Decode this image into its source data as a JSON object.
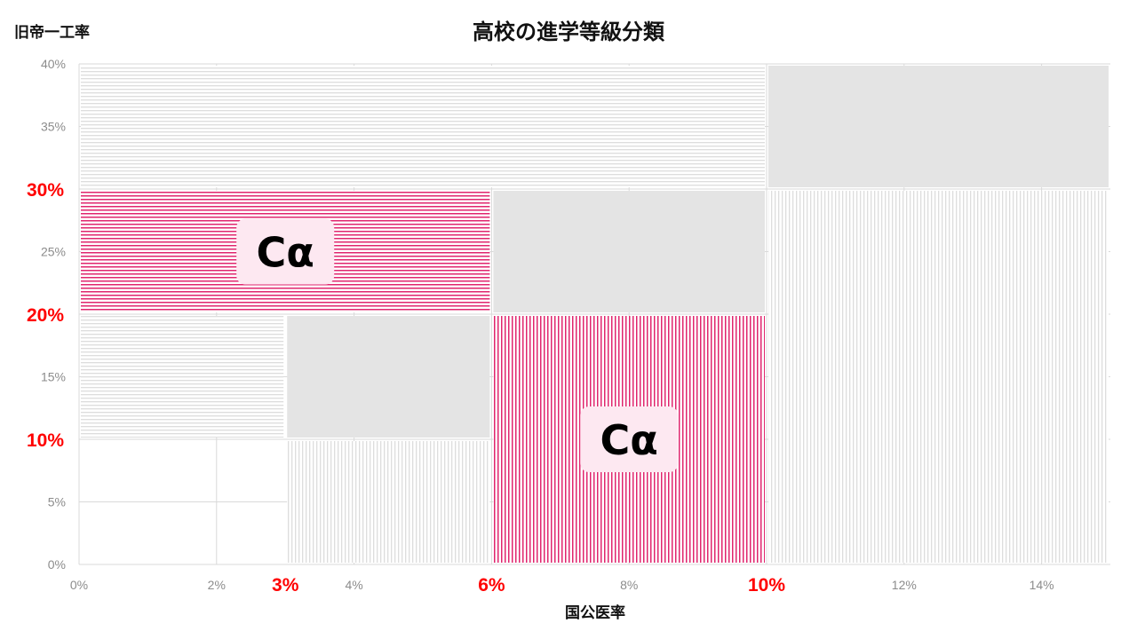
{
  "chart_data": {
    "type": "mosaic",
    "title": "高校の進学等級分類",
    "xlabel": "国公医率",
    "ylabel": "旧帝一工率",
    "xlim": [
      0,
      15
    ],
    "ylim": [
      0,
      40
    ],
    "grid": true,
    "x_ticks": [
      "0%",
      "2%",
      "4%",
      "8%",
      "12%",
      "14%"
    ],
    "x_tick_values": [
      0,
      2,
      4,
      8,
      12,
      14
    ],
    "x_highlight_ticks": [
      "3%",
      "6%",
      "10%"
    ],
    "x_highlight_values": [
      3,
      6,
      10
    ],
    "y_ticks": [
      "0%",
      "5%",
      "15%",
      "25%",
      "35%",
      "40%"
    ],
    "y_tick_values": [
      0,
      5,
      15,
      25,
      35,
      40
    ],
    "y_highlight_ticks": [
      "10%",
      "20%",
      "30%"
    ],
    "y_highlight_values": [
      10,
      20,
      30
    ],
    "highlight_color": "#ff0000",
    "regions": [
      {
        "x": [
          0,
          10
        ],
        "y": [
          30,
          40
        ],
        "fill": "hlines-gray",
        "label": ""
      },
      {
        "x": [
          10,
          15
        ],
        "y": [
          30,
          40
        ],
        "fill": "solid-gray",
        "label": ""
      },
      {
        "x": [
          0,
          6
        ],
        "y": [
          20,
          30
        ],
        "fill": "hlines-pink",
        "label": "Cα"
      },
      {
        "x": [
          6,
          10
        ],
        "y": [
          20,
          30
        ],
        "fill": "solid-gray",
        "label": ""
      },
      {
        "x": [
          10,
          15
        ],
        "y": [
          0,
          30
        ],
        "fill": "vlines-gray",
        "label": ""
      },
      {
        "x": [
          0,
          3
        ],
        "y": [
          10,
          20
        ],
        "fill": "hlines-gray",
        "label": ""
      },
      {
        "x": [
          3,
          6
        ],
        "y": [
          10,
          20
        ],
        "fill": "solid-gray",
        "label": ""
      },
      {
        "x": [
          3,
          6
        ],
        "y": [
          0,
          10
        ],
        "fill": "vlines-gray",
        "label": ""
      },
      {
        "x": [
          6,
          10
        ],
        "y": [
          0,
          20
        ],
        "fill": "vlines-pink",
        "label": "Cα"
      },
      {
        "x": [
          0,
          3
        ],
        "y": [
          0,
          10
        ],
        "fill": "none",
        "label": ""
      }
    ],
    "colors": {
      "pink": "#e0256e",
      "gray_line": "#dddddd",
      "solid_gray": "#e4e4e4",
      "label_bg": "#fde8f1"
    }
  }
}
